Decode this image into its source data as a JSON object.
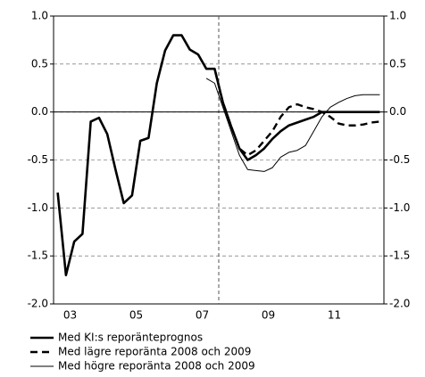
{
  "chart_data": {
    "type": "line",
    "x": [
      2003.125,
      2003.375,
      2003.625,
      2003.875,
      2004.125,
      2004.375,
      2004.625,
      2004.875,
      2005.125,
      2005.375,
      2005.625,
      2005.875,
      2006.125,
      2006.375,
      2006.625,
      2006.875,
      2007.125,
      2007.375,
      2007.625,
      2007.875,
      2008.125,
      2008.375,
      2008.625,
      2008.875,
      2009.125,
      2009.375,
      2009.625,
      2009.875,
      2010.125,
      2010.375,
      2010.625,
      2010.875,
      2011.125,
      2011.375,
      2011.625,
      2011.875,
      2012.125,
      2012.375,
      2012.625,
      2012.875
    ],
    "xlim": [
      2003,
      2013
    ],
    "xticks": [
      {
        "value": 2003.5,
        "label": "03"
      },
      {
        "value": 2005.5,
        "label": "05"
      },
      {
        "value": 2007.5,
        "label": "07"
      },
      {
        "value": 2009.5,
        "label": "09"
      },
      {
        "value": 2011.5,
        "label": "11"
      }
    ],
    "ylim": [
      -2,
      1
    ],
    "yticks": [
      {
        "value": 1,
        "label": "1.0"
      },
      {
        "value": 0.5,
        "label": "0.5"
      },
      {
        "value": 0,
        "label": "0.0"
      },
      {
        "value": -0.5,
        "label": "-0.5"
      },
      {
        "value": -1,
        "label": "-1.0"
      },
      {
        "value": -1.5,
        "label": "-1.5"
      },
      {
        "value": -2,
        "label": "-2.0"
      }
    ],
    "y2lim": [
      -2,
      1
    ],
    "y2ticks": [
      {
        "value": 1,
        "label": "1.0"
      },
      {
        "value": 0.5,
        "label": "0.5"
      },
      {
        "value": 0,
        "label": "0.0"
      },
      {
        "value": -0.5,
        "label": "-0.5"
      },
      {
        "value": -1,
        "label": "-1.0"
      },
      {
        "value": -1.5,
        "label": "-1.5"
      },
      {
        "value": -2,
        "label": "-2.0"
      }
    ],
    "grid": true,
    "vline_x": 2008,
    "series": [
      {
        "name": "Med KI:s reporänteprognos",
        "color": "#000000",
        "style": "solid",
        "values": [
          -0.84,
          -1.7,
          -1.35,
          -1.27,
          -0.1,
          -0.06,
          -0.23,
          -0.6,
          -0.95,
          -0.87,
          -0.3,
          -0.27,
          0.3,
          0.64,
          0.8,
          0.8,
          0.65,
          0.6,
          0.45,
          0.45,
          0.1,
          -0.15,
          -0.38,
          -0.5,
          -0.45,
          -0.38,
          -0.28,
          -0.2,
          -0.14,
          -0.11,
          -0.08,
          -0.05,
          0,
          0,
          0,
          0,
          0,
          0,
          0,
          0
        ]
      },
      {
        "name": "Med lägre reporänta 2008 och 2009",
        "color": "#000000",
        "style": "dashed",
        "values": [
          null,
          null,
          null,
          null,
          null,
          null,
          null,
          null,
          null,
          null,
          null,
          null,
          null,
          null,
          null,
          null,
          null,
          null,
          0.45,
          0.45,
          0.1,
          -0.15,
          -0.38,
          -0.45,
          -0.4,
          -0.3,
          -0.2,
          -0.05,
          0.05,
          0.08,
          0.05,
          0.03,
          0,
          -0.05,
          -0.12,
          -0.14,
          -0.14,
          -0.13,
          -0.11,
          -0.1
        ]
      },
      {
        "name": "Med högre reporänta 2008 och 2009",
        "color": "#000000",
        "style": "thin",
        "values": [
          null,
          null,
          null,
          null,
          null,
          null,
          null,
          null,
          null,
          null,
          null,
          null,
          null,
          null,
          null,
          null,
          null,
          null,
          0.35,
          0.3,
          0.05,
          -0.2,
          -0.45,
          -0.6,
          -0.61,
          -0.62,
          -0.58,
          -0.47,
          -0.42,
          -0.4,
          -0.35,
          -0.2,
          -0.05,
          0.05,
          0.1,
          0.14,
          0.17,
          0.18,
          0.18,
          0.18
        ]
      }
    ]
  }
}
